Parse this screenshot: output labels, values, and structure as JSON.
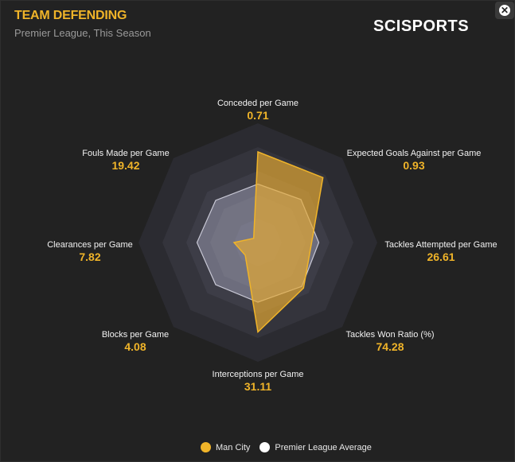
{
  "header": {
    "title": "TEAM DEFENDING",
    "subtitle": "Premier League, This Season",
    "logo": "SCISPORTS",
    "close_icon": "close-icon"
  },
  "colors": {
    "team": "#f0b429",
    "average": "#ffffff"
  },
  "chart_data": {
    "type": "radar",
    "axes": [
      "Conceded per Game",
      "Expected Goals Against per Game",
      "Tackles Attempted per Game",
      "Tackles Won Ratio (%)",
      "Interceptions per Game",
      "Blocks per Game",
      "Clearances per Game",
      "Fouls Made per Game"
    ],
    "value_labels": [
      "0.71",
      "0.93",
      "26.61",
      "74.28",
      "31.11",
      "4.08",
      "7.82",
      "19.42"
    ],
    "series": [
      {
        "name": "Man City",
        "normalized": [
          0.76,
          0.77,
          0.45,
          0.54,
          0.75,
          0.15,
          0.2,
          0.05
        ]
      },
      {
        "name": "Premier League Average",
        "normalized": [
          0.49,
          0.51,
          0.51,
          0.52,
          0.5,
          0.5,
          0.51,
          0.5
        ]
      }
    ],
    "rings": 5,
    "legend": "bottom"
  }
}
